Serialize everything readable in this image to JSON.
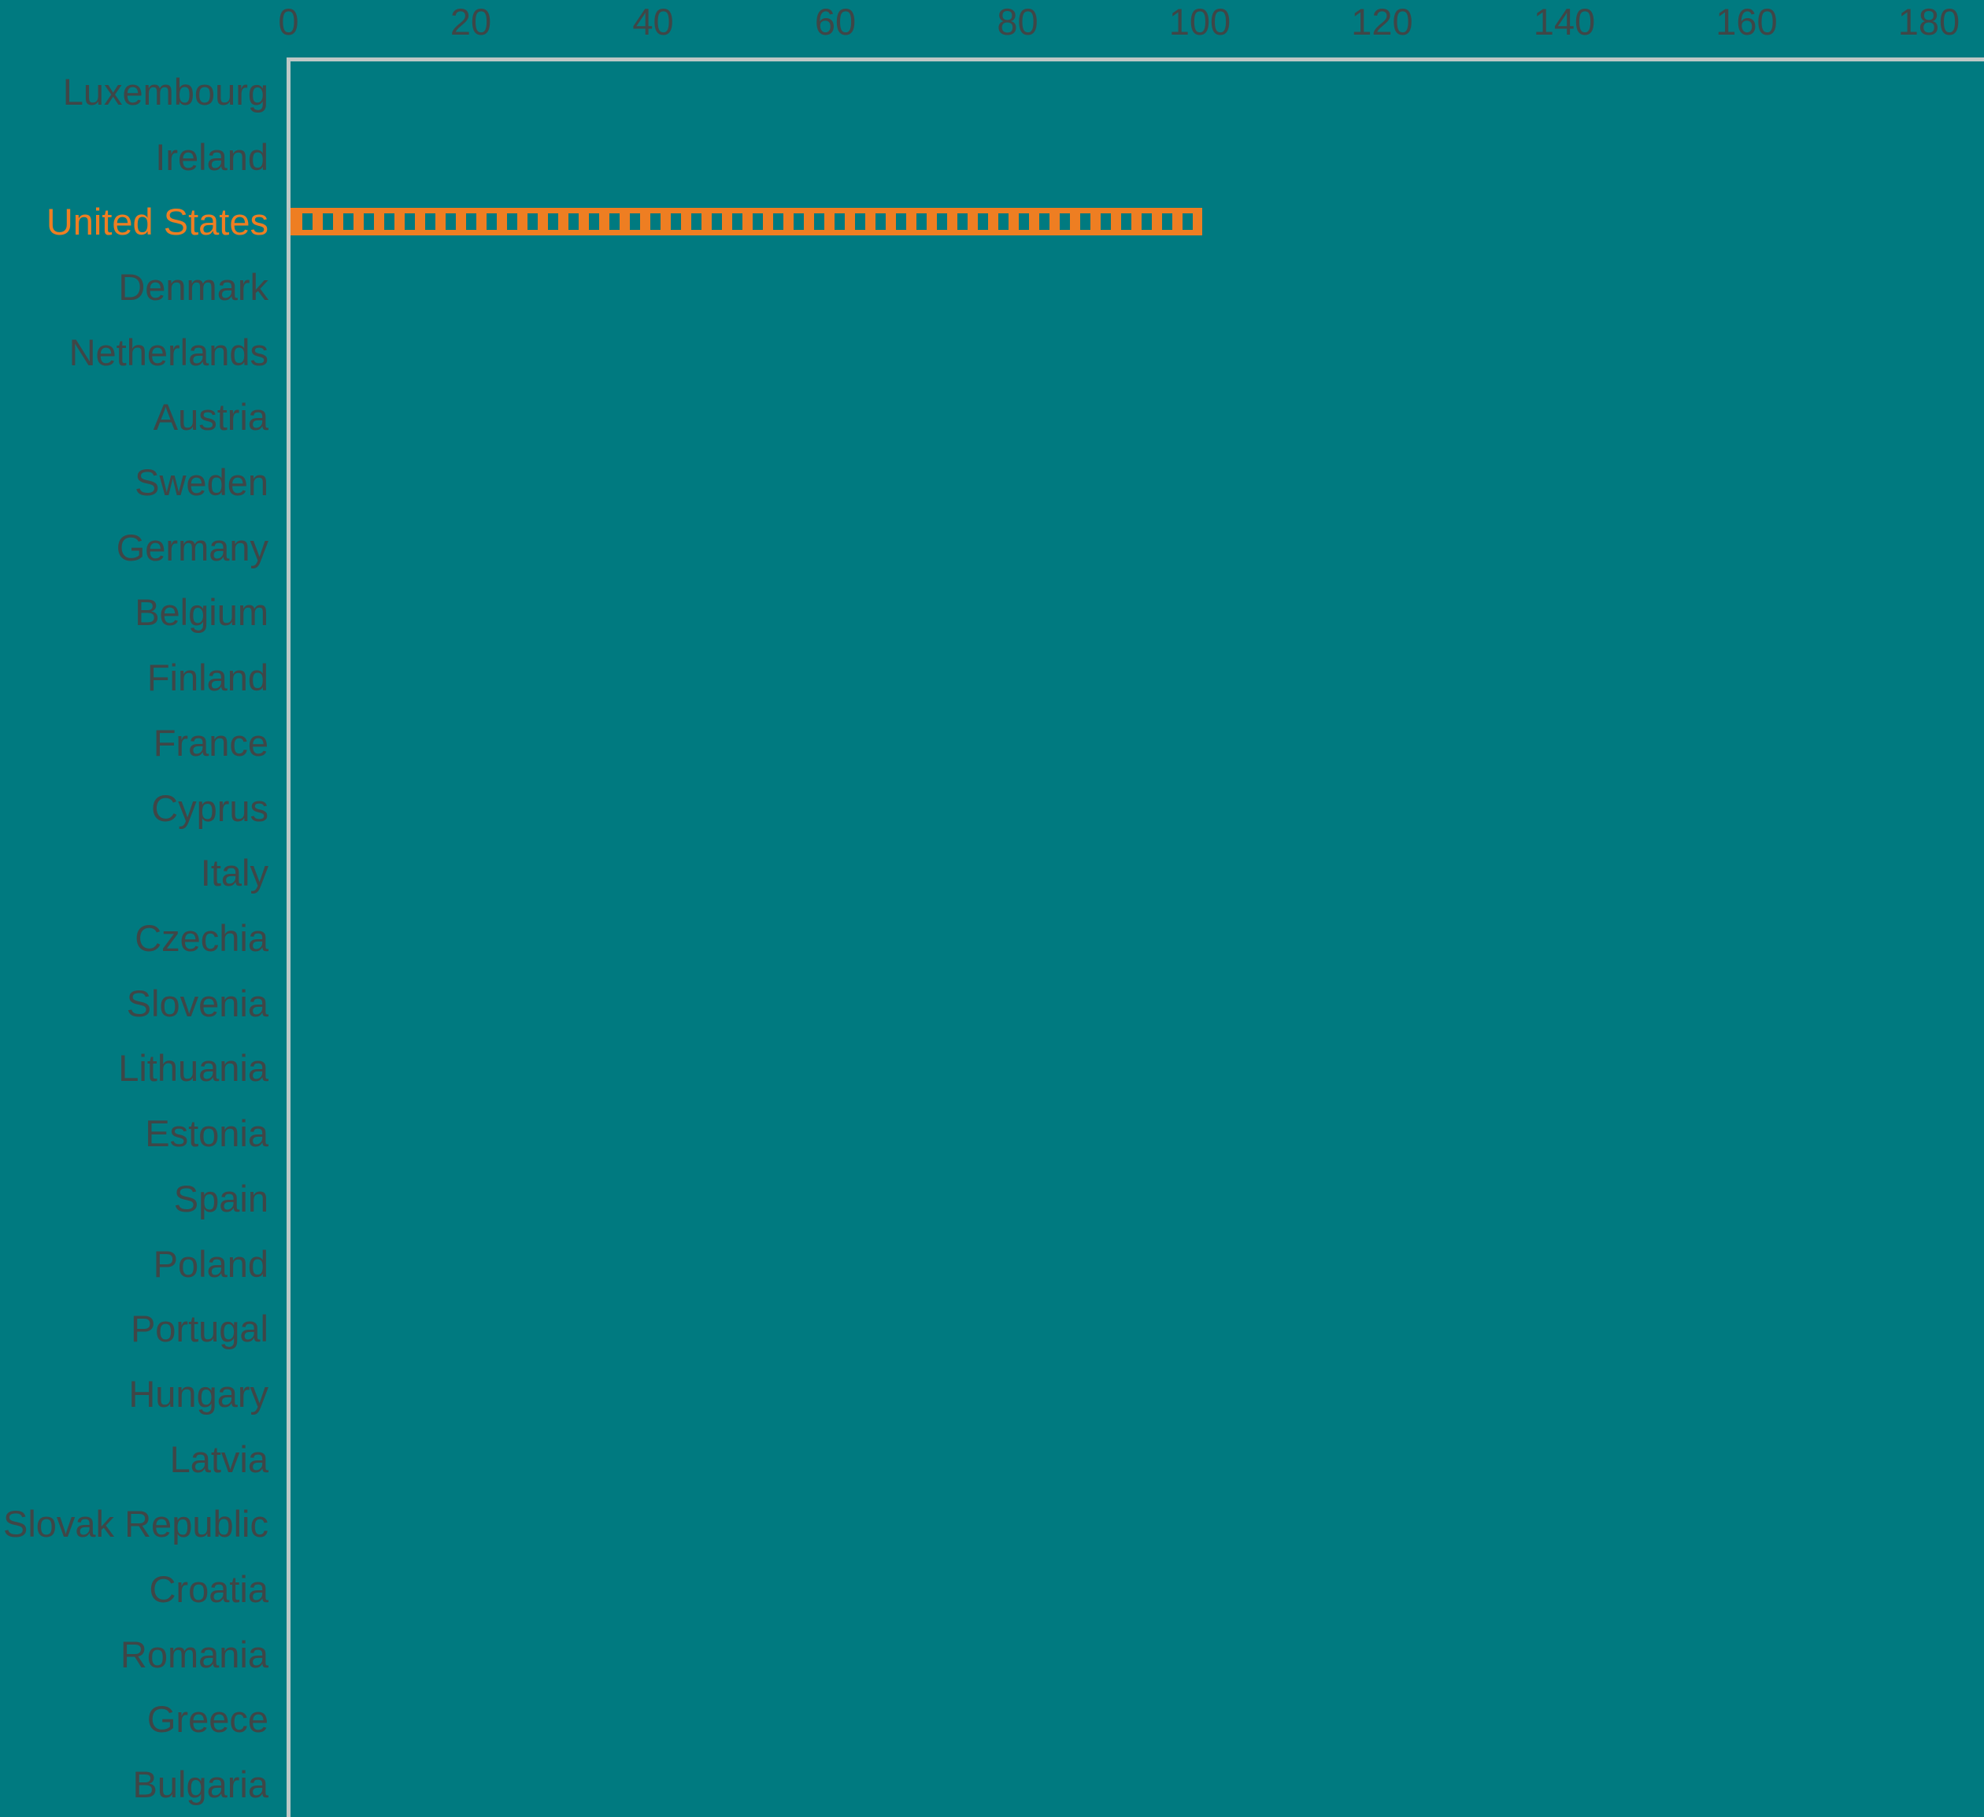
{
  "chart_data": {
    "type": "bar",
    "orientation": "horizontal",
    "title": "",
    "categories": [
      "Luxembourg",
      "Ireland",
      "United States",
      "Denmark",
      "Netherlands",
      "Austria",
      "Sweden",
      "Germany",
      "Belgium",
      "Finland",
      "France",
      "Cyprus",
      "Italy",
      "Czechia",
      "Slovenia",
      "Lithuania",
      "Estonia",
      "Spain",
      "Poland",
      "Portugal",
      "Hungary",
      "Latvia",
      "Slovak Republic",
      "Croatia",
      "Romania",
      "Greece",
      "Bulgaria"
    ],
    "values": [
      null,
      null,
      100,
      null,
      null,
      null,
      null,
      null,
      null,
      null,
      null,
      null,
      null,
      null,
      null,
      null,
      null,
      null,
      null,
      null,
      null,
      null,
      null,
      null,
      null,
      null,
      null
    ],
    "x_ticks": [
      0,
      20,
      40,
      60,
      80,
      100,
      120,
      140,
      160,
      180
    ],
    "xlim": [
      0,
      180
    ],
    "grid": false,
    "legend": false,
    "highlighted_category": "United States",
    "bar_fill_style": "orange frame with vertical hatch dashes",
    "colors": {
      "background": "#007a80",
      "bar": "#ee7e22",
      "highlighted_label": "#ee7e22",
      "category_label": "#3f4647",
      "axis_line": "#bdc8c6"
    }
  }
}
